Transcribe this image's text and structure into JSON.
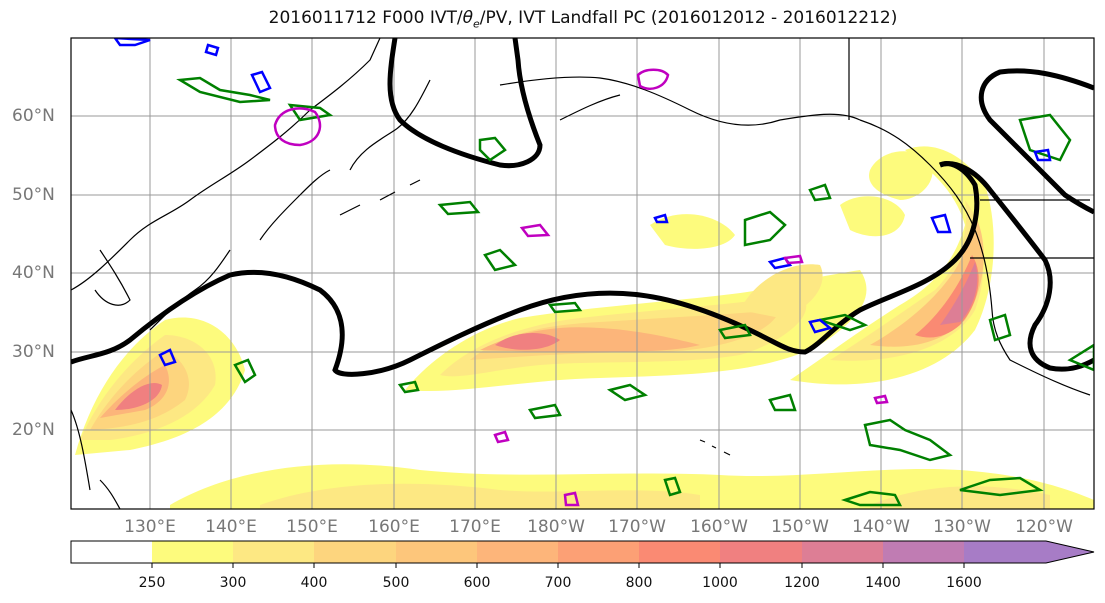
{
  "title": {
    "prefix": "2016011712 F000 IVT/",
    "theta": "θ",
    "theta_sub": "e",
    "suffix": "/PV, IVT Landfall PC (2016012012 - 2016012212)"
  },
  "lat_labels": [
    "60°N",
    "50°N",
    "40°N",
    "30°N",
    "20°N"
  ],
  "lon_labels": [
    "130°E",
    "140°E",
    "150°E",
    "160°E",
    "170°E",
    "180°W",
    "170°W",
    "160°W",
    "150°W",
    "140°W",
    "130°W",
    "120°W"
  ],
  "colorbar": {
    "ticks": [
      "250",
      "300",
      "400",
      "500",
      "600",
      "700",
      "800",
      "1000",
      "1200",
      "1400",
      "1600"
    ],
    "colors": [
      "#ffffff",
      "#fdfb7d",
      "#fde883",
      "#fdd57e",
      "#fdc67b",
      "#fdb57a",
      "#fca075",
      "#fa8a73",
      "#f08080",
      "#dd7e95",
      "#c07cb3",
      "#a77cc6"
    ]
  },
  "contour_colors": {
    "pv": "#000000",
    "theta_e": "#008000",
    "ivt_blue": "#0000ff",
    "ivt_magenta": "#c000c0"
  }
}
